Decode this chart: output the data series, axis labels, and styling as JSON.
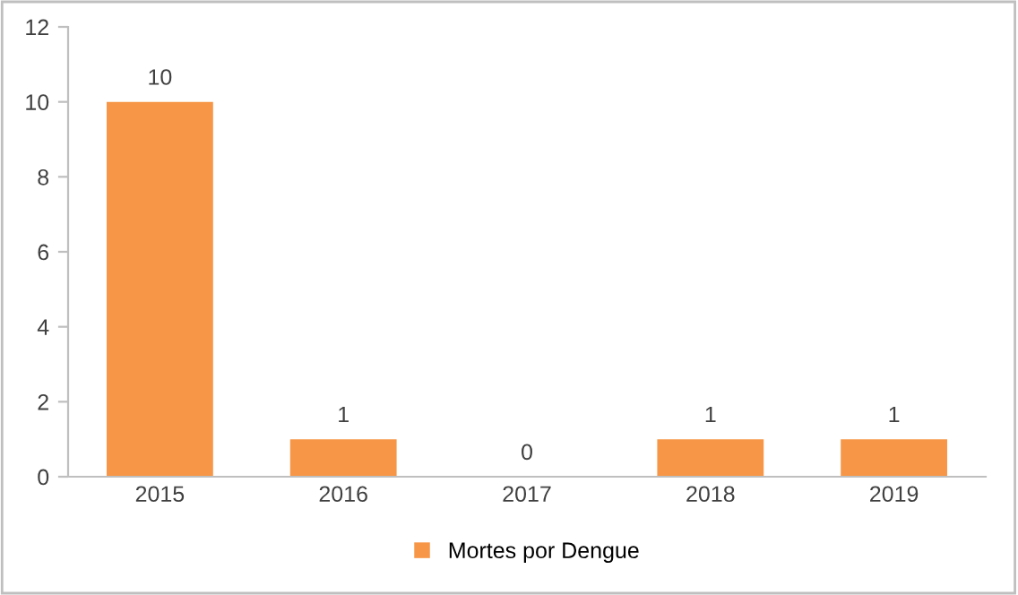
{
  "chart_data": {
    "type": "bar",
    "categories": [
      "2015",
      "2016",
      "2017",
      "2018",
      "2019"
    ],
    "series": [
      {
        "name": "Mortes por Dengue",
        "color": "#f79646",
        "values": [
          10,
          1,
          0,
          1,
          1
        ]
      }
    ],
    "ylim": [
      0,
      12
    ],
    "yticks": [
      0,
      2,
      4,
      6,
      8,
      10,
      12
    ],
    "grid": false,
    "legend": "bottom",
    "data_labels": true
  }
}
